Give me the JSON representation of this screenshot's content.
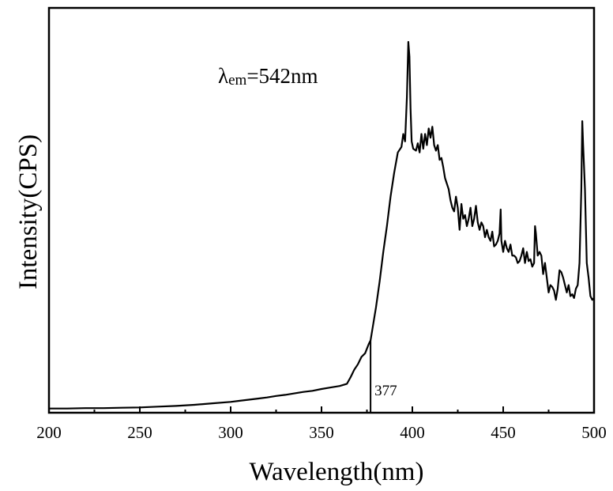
{
  "chart_data": {
    "type": "line",
    "xlabel": "Wavelength(nm)",
    "ylabel": "Intensity(CPS)",
    "xlim": [
      200,
      500
    ],
    "xticks": [
      200,
      250,
      300,
      350,
      400,
      450,
      500
    ],
    "y_ticks_labeled": false,
    "grid": false,
    "legend": "none",
    "line_color": "#000000",
    "annotation": {
      "symbol": "λ",
      "subscript": "em",
      "text": "=542nm"
    },
    "marker": {
      "x": 377,
      "label": "377"
    },
    "series": [
      {
        "x": [
          200,
          210,
          220,
          230,
          240,
          250,
          260,
          270,
          280,
          290,
          300,
          305,
          310,
          315,
          320,
          325,
          330,
          335,
          340,
          345,
          350,
          355,
          360,
          364,
          366,
          368,
          370,
          372,
          374,
          376,
          377,
          378,
          380,
          382,
          384,
          386,
          388,
          390,
          392,
          394,
          395,
          396,
          397,
          397.8,
          398.4,
          399,
          399.6,
          400.5,
          402,
          403,
          404,
          405,
          406,
          407,
          408,
          409,
          410,
          411,
          412,
          413,
          414,
          415,
          416,
          417,
          418,
          419,
          420,
          421,
          422,
          423,
          424,
          425,
          426,
          427,
          428,
          429,
          430,
          431,
          432,
          433,
          434,
          435,
          436,
          437,
          438,
          439,
          440,
          441,
          442,
          443,
          444,
          445,
          446,
          447,
          448,
          448.6,
          449,
          450,
          451,
          452,
          453,
          454,
          455,
          456,
          457,
          458,
          459,
          460,
          461,
          462,
          463,
          464,
          465,
          466,
          467,
          467.5,
          468,
          469,
          470,
          471,
          472,
          473,
          474,
          475,
          476,
          477,
          478,
          479,
          480,
          481,
          482,
          483,
          484,
          485,
          486,
          487,
          488,
          489,
          490,
          491,
          492,
          493,
          493.5,
          494,
          495,
          496,
          497,
          498,
          499,
          500
        ],
        "y": [
          0.5,
          0.5,
          0.6,
          0.6,
          0.7,
          0.8,
          1.0,
          1.2,
          1.5,
          1.9,
          2.3,
          2.6,
          2.9,
          3.2,
          3.5,
          3.9,
          4.2,
          4.6,
          5.0,
          5.3,
          5.8,
          6.2,
          6.6,
          7.2,
          9.0,
          11.0,
          12.5,
          14.5,
          15.5,
          18.0,
          19.0,
          22.0,
          28.0,
          35.0,
          43.0,
          50.0,
          58.0,
          64.5,
          70.0,
          71.5,
          75.0,
          73.0,
          85.0,
          100.0,
          96.0,
          82.0,
          73.0,
          71.0,
          70.5,
          72.5,
          70.0,
          75.0,
          71.0,
          75.0,
          72.0,
          76.5,
          74.0,
          77.0,
          72.0,
          70.5,
          72.0,
          68.0,
          68.5,
          66.0,
          63.0,
          61.5,
          60.0,
          57.0,
          55.0,
          54.0,
          58.0,
          55.0,
          49.0,
          56.0,
          52.0,
          53.0,
          50.0,
          52.0,
          55.0,
          50.0,
          52.0,
          55.5,
          51.0,
          49.0,
          51.0,
          50.0,
          47.0,
          49.0,
          47.0,
          46.0,
          48.5,
          44.5,
          45.0,
          46.0,
          48.0,
          54.5,
          46.0,
          43.0,
          46.0,
          44.0,
          43.0,
          45.0,
          42.0,
          42.0,
          41.5,
          40.0,
          40.5,
          42.0,
          44.0,
          40.0,
          43.0,
          40.5,
          41.0,
          39.0,
          40.0,
          50.0,
          48.0,
          42.0,
          43.0,
          42.0,
          37.0,
          40.0,
          36.0,
          32.0,
          34.0,
          33.5,
          32.5,
          30.0,
          33.0,
          38.0,
          37.5,
          36.0,
          34.0,
          32.0,
          34.0,
          31.0,
          31.5,
          30.5,
          33.0,
          34.0,
          40.0,
          60.0,
          78.5,
          72.0,
          60.0,
          40.0,
          36.0,
          31.0,
          30.0,
          30.5
        ]
      }
    ]
  }
}
